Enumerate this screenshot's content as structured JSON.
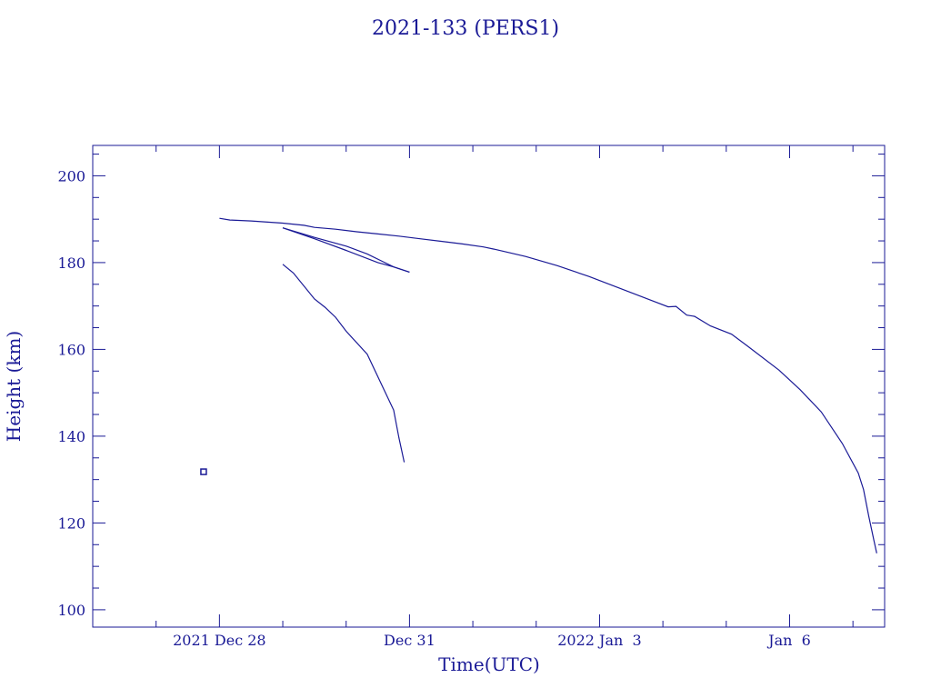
{
  "chart_data": {
    "type": "line",
    "title": "2021-133 (PERS1)",
    "xlabel": "Time(UTC)",
    "ylabel": "Height (km)",
    "xlim": [
      "2021-12-26T00:00",
      "2022-01-07T12:00"
    ],
    "ylim": [
      96,
      207
    ],
    "x_ticks": [
      {
        "label": "2021 Dec 28",
        "at": "2021-12-28T00:00"
      },
      {
        "label": "Dec 31",
        "at": "2021-12-31T00:00"
      },
      {
        "label": "2022 Jan  3",
        "at": "2022-01-03T00:00"
      },
      {
        "label": "Jan  6",
        "at": "2022-01-06T00:00"
      }
    ],
    "y_ticks": [
      100,
      120,
      140,
      160,
      180,
      200
    ],
    "grid": false,
    "legend": "none",
    "color": "#1a1a96",
    "series": [
      {
        "points": [
          [
            "2021-12-28T00:00",
            190.2
          ],
          [
            "2021-12-28T04:00",
            189.8
          ],
          [
            "2021-12-28T12:00",
            189.6
          ],
          [
            "2021-12-29T00:00",
            189.1
          ],
          [
            "2021-12-29T08:00",
            188.6
          ],
          [
            "2021-12-29T12:00",
            188.1
          ],
          [
            "2021-12-29T20:00",
            187.7
          ],
          [
            "2021-12-30T04:00",
            187.1
          ],
          [
            "2021-12-30T12:00",
            186.6
          ],
          [
            "2021-12-30T20:00",
            186.1
          ],
          [
            "2021-12-31T04:00",
            185.5
          ],
          [
            "2021-12-31T12:00",
            184.9
          ],
          [
            "2021-12-31T20:00",
            184.3
          ],
          [
            "2022-01-01T04:00",
            183.6
          ],
          [
            "2022-01-01T08:00",
            183.1
          ],
          [
            "2022-01-01T20:00",
            181.4
          ],
          [
            "2022-01-02T08:00",
            179.3
          ],
          [
            "2022-01-02T20:00",
            176.8
          ],
          [
            "2022-01-03T08:00",
            174.0
          ],
          [
            "2022-01-03T20:00",
            171.2
          ],
          [
            "2022-01-04T02:00",
            169.8
          ],
          [
            "2022-01-04T05:00",
            169.9
          ],
          [
            "2022-01-04T09:00",
            167.9
          ],
          [
            "2022-01-04T12:00",
            167.6
          ],
          [
            "2022-01-04T18:00",
            165.4
          ],
          [
            "2022-01-05T02:00",
            163.5
          ],
          [
            "2022-01-05T08:00",
            160.8
          ],
          [
            "2022-01-05T20:00",
            155.2
          ],
          [
            "2022-01-06T04:00",
            150.7
          ],
          [
            "2022-01-06T12:00",
            145.6
          ],
          [
            "2022-01-06T20:00",
            138.3
          ],
          [
            "2022-01-07T02:00",
            131.5
          ],
          [
            "2022-01-07T04:00",
            127.7
          ],
          [
            "2022-01-07T06:00",
            121.5
          ],
          [
            "2022-01-07T08:00",
            115.8
          ],
          [
            "2022-01-07T09:00",
            113.0
          ]
        ]
      },
      {
        "points": [
          [
            "2021-12-29T00:00",
            188.0
          ],
          [
            "2021-12-29T12:00",
            185.8
          ],
          [
            "2021-12-30T00:00",
            183.8
          ],
          [
            "2021-12-30T08:00",
            182.0
          ],
          [
            "2021-12-30T14:00",
            180.2
          ],
          [
            "2021-12-30T18:00",
            179.0
          ],
          [
            "2021-12-31T00:00",
            177.8
          ]
        ]
      },
      {
        "points": [
          [
            "2021-12-29T00:00",
            188.0
          ],
          [
            "2021-12-29T12:00",
            185.5
          ],
          [
            "2021-12-30T00:00",
            182.8
          ],
          [
            "2021-12-30T12:00",
            180.0
          ],
          [
            "2021-12-30T18:00",
            179.0
          ],
          [
            "2021-12-31T00:00",
            177.8
          ]
        ]
      },
      {
        "points": [
          [
            "2021-12-29T00:00",
            179.6
          ],
          [
            "2021-12-29T04:00",
            177.6
          ],
          [
            "2021-12-29T12:00",
            171.6
          ],
          [
            "2021-12-29T16:00",
            169.7
          ],
          [
            "2021-12-29T20:00",
            167.4
          ],
          [
            "2021-12-30T00:00",
            164.2
          ],
          [
            "2021-12-30T08:00",
            158.9
          ],
          [
            "2021-12-30T18:00",
            146.0
          ],
          [
            "2021-12-30T20:00",
            139.6
          ],
          [
            "2021-12-30T22:00",
            134.0
          ]
        ]
      },
      {
        "points": [
          [
            "2021-12-27T18:00",
            131.8
          ]
        ]
      }
    ]
  }
}
